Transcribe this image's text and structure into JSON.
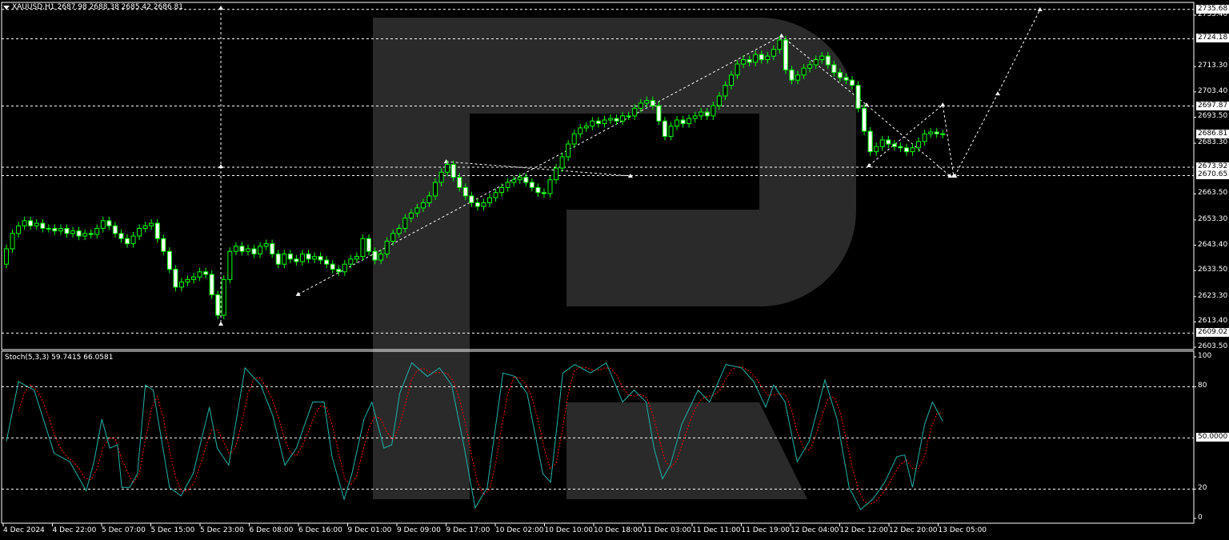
{
  "header": {
    "symbol": "XAUUSD,H1",
    "ohlc": "2687.98 2688.38 2685.42 2686.81"
  },
  "indicator": {
    "label": "Stoch(5,3,3) 59.7415 66.0581"
  },
  "colors": {
    "background": "#000000",
    "bull_outline": "#00ff00",
    "bear_fill": "#ffffff",
    "stoch_main": "#20b2aa",
    "stoch_signal": "#ff0000",
    "watermark": "#2a2a2a",
    "grid": "#ffffff"
  },
  "price_axis": {
    "ticks": [
      "2733.40",
      "2713.30",
      "2703.40",
      "2693.50",
      "2683.30",
      "2663.50",
      "2653.30",
      "2643.40",
      "2633.50",
      "2623.30",
      "2613.40",
      "2603.50"
    ],
    "levels": [
      "2735.68",
      "2724.18",
      "2697.87",
      "2673.92",
      "2670.65",
      "2609.02"
    ],
    "current": "2686.81"
  },
  "stoch_axis": {
    "ticks": [
      "100",
      "80",
      "20",
      "0"
    ],
    "levels": [
      80,
      50,
      20
    ],
    "level_label": "50.0000"
  },
  "time_axis": [
    "4 Dec 2024",
    "4 Dec 22:00",
    "5 Dec 07:00",
    "5 Dec 15:00",
    "5 Dec 23:00",
    "6 Dec 08:00",
    "6 Dec 16:00",
    "9 Dec 01:00",
    "9 Dec 09:00",
    "9 Dec 17:00",
    "10 Dec 02:00",
    "10 Dec 10:00",
    "10 Dec 18:00",
    "11 Dec 03:00",
    "11 Dec 11:00",
    "11 Dec 19:00",
    "12 Dec 04:00",
    "12 Dec 12:00",
    "12 Dec 20:00",
    "13 Dec 05:00"
  ],
  "chart_data": {
    "type": "candlestick",
    "symbol": "XAUUSD",
    "timeframe": "H1",
    "ylim": [
      2603.5,
      2736.5
    ],
    "closes": [
      2642,
      2648,
      2651,
      2653,
      2651,
      2652,
      2650,
      2650,
      2649,
      2650,
      2648,
      2649,
      2647,
      2648,
      2647.6,
      2650,
      2653,
      2651,
      2648,
      2646,
      2644,
      2647,
      2650,
      2651,
      2652,
      2646,
      2641,
      2634,
      2627,
      2629,
      2630,
      2631,
      2633,
      2632,
      2624,
      2616,
      2630,
      2641,
      2643,
      2641,
      2642,
      2640,
      2643,
      2644,
      2640,
      2636,
      2640,
      2638,
      2637,
      2640,
      2638,
      2639,
      2637.6,
      2636,
      2634,
      2633,
      2636,
      2638,
      2639,
      2646,
      2641,
      2637.6,
      2640,
      2645,
      2648,
      2650,
      2654,
      2656,
      2658,
      2660,
      2662.7,
      2668,
      2672,
      2675,
      2670,
      2666,
      2662.7,
      2660,
      2658.6,
      2660,
      2662,
      2664,
      2666,
      2668,
      2669,
      2670,
      2668,
      2666,
      2664,
      2663.6,
      2669,
      2673.6,
      2678,
      2683,
      2687,
      2689.3,
      2690,
      2692,
      2691,
      2692.4,
      2693,
      2692,
      2694,
      2694,
      2697,
      2699,
      2700,
      2698,
      2692,
      2686,
      2690,
      2692.4,
      2691,
      2693,
      2694,
      2695.5,
      2694,
      2698,
      2701.8,
      2706,
      2710,
      2714.3,
      2716,
      2715,
      2718,
      2716,
      2717.4,
      2720,
      2723.7,
      2712,
      2708,
      2710,
      2712.7,
      2714,
      2716,
      2717.4,
      2714,
      2711,
      2709,
      2708,
      2706,
      2697,
      2688,
      2680,
      2682,
      2684.6,
      2683,
      2682,
      2681.5,
      2680,
      2681.5,
      2684,
      2687,
      2687.7,
      2687,
      2686.81
    ],
    "forecast_lines": [
      [
        [
          35.5,
          2736.2
        ],
        [
          35.5,
          2674.2
        ],
        [
          35.5,
          2612.6
        ]
      ],
      [
        [
          48.3,
          2624.2
        ],
        [
          128.3,
          2725.3
        ]
      ],
      [
        [
          72.8,
          2676.1
        ],
        [
          103.3,
          2670.5
        ]
      ],
      [
        [
          128.3,
          2725.3
        ],
        [
          142.4,
          2698.3
        ],
        [
          156.2,
          2670.5
        ]
      ],
      [
        [
          142.8,
          2674.6
        ],
        [
          155,
          2698.3
        ],
        [
          156.8,
          2670.5
        ]
      ],
      [
        [
          157,
          2670.5
        ],
        [
          164.1,
          2702.7
        ],
        [
          171.1,
          2735.6
        ]
      ]
    ],
    "stochastic": {
      "params": "5,3,3",
      "main_last": 59.7415,
      "signal_last": 66.0581,
      "ylim": [
        0,
        100
      ],
      "main": [
        [
          0,
          48
        ],
        [
          2,
          83
        ],
        [
          4.6,
          78
        ],
        [
          7.9,
          41
        ],
        [
          10.5,
          36
        ],
        [
          13.2,
          19
        ],
        [
          14.5,
          36
        ],
        [
          15.8,
          61
        ],
        [
          17.1,
          44
        ],
        [
          18.4,
          46
        ],
        [
          19.1,
          21
        ],
        [
          20.4,
          21
        ],
        [
          21.7,
          29
        ],
        [
          23,
          81
        ],
        [
          24.3,
          78
        ],
        [
          27,
          21
        ],
        [
          28.9,
          16
        ],
        [
          30.9,
          29
        ],
        [
          33.6,
          68
        ],
        [
          34.9,
          44
        ],
        [
          36.8,
          34
        ],
        [
          39.5,
          91
        ],
        [
          42.1,
          81
        ],
        [
          44.1,
          63
        ],
        [
          46.1,
          34
        ],
        [
          48,
          44
        ],
        [
          50.7,
          71
        ],
        [
          52.6,
          71
        ],
        [
          53.9,
          39
        ],
        [
          55.9,
          14
        ],
        [
          57.2,
          29
        ],
        [
          59.2,
          61
        ],
        [
          60.5,
          71
        ],
        [
          62.5,
          44
        ],
        [
          63.8,
          46
        ],
        [
          65.1,
          76
        ],
        [
          67.1,
          94
        ],
        [
          69.7,
          86
        ],
        [
          71.7,
          91
        ],
        [
          73.7,
          81
        ],
        [
          75.7,
          46
        ],
        [
          77.6,
          9
        ],
        [
          79.6,
          21
        ],
        [
          82.2,
          88
        ],
        [
          84.2,
          86
        ],
        [
          86.2,
          76
        ],
        [
          88.8,
          29
        ],
        [
          90.1,
          24
        ],
        [
          92.1,
          88
        ],
        [
          94.1,
          93
        ],
        [
          96.7,
          88
        ],
        [
          99.3,
          94
        ],
        [
          102,
          71
        ],
        [
          103.9,
          78
        ],
        [
          105.9,
          71
        ],
        [
          107.2,
          44
        ],
        [
          108.6,
          26
        ],
        [
          109.9,
          34
        ],
        [
          111.8,
          58
        ],
        [
          114.5,
          78
        ],
        [
          116.4,
          71
        ],
        [
          119.1,
          93
        ],
        [
          121.7,
          91
        ],
        [
          123.7,
          83
        ],
        [
          125.7,
          68
        ],
        [
          127,
          81
        ],
        [
          128.9,
          71
        ],
        [
          130.9,
          36
        ],
        [
          132.9,
          48
        ],
        [
          135.5,
          84
        ],
        [
          137.5,
          61
        ],
        [
          139.5,
          21
        ],
        [
          141.4,
          8
        ],
        [
          143.4,
          14
        ],
        [
          145.4,
          24
        ],
        [
          147.4,
          39
        ],
        [
          148.7,
          40
        ],
        [
          150,
          21
        ],
        [
          152,
          58
        ],
        [
          153.3,
          71
        ],
        [
          155,
          59.74
        ]
      ]
    }
  }
}
